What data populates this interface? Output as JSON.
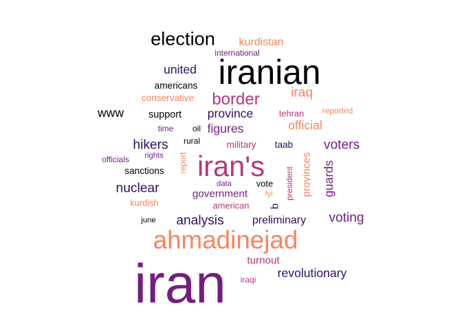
{
  "palette": {
    "black": "#000004",
    "dark_purple": "#2c0f5e",
    "purple": "#721f81",
    "magenta": "#b73779",
    "coral": "#f1605d",
    "orange": "#f8845e"
  },
  "words": [
    {
      "text": "iran",
      "weight": 100,
      "color": "#721f81",
      "rotated": false
    },
    {
      "text": "iranian",
      "weight": 62,
      "color": "#000004",
      "rotated": false
    },
    {
      "text": "ahmadinejad",
      "weight": 46,
      "color": "#f8845e",
      "rotated": false
    },
    {
      "text": "iran's",
      "weight": 52,
      "color": "#b73779",
      "rotated": false
    },
    {
      "text": "election",
      "weight": 34,
      "color": "#000004",
      "rotated": false
    },
    {
      "text": "border",
      "weight": 30,
      "color": "#b73779",
      "rotated": false
    },
    {
      "text": "iraq",
      "weight": 24,
      "color": "#f8845e",
      "rotated": false
    },
    {
      "text": "voters",
      "weight": 24,
      "color": "#721f81",
      "rotated": false
    },
    {
      "text": "voting",
      "weight": 24,
      "color": "#721f81",
      "rotated": false
    },
    {
      "text": "hikers",
      "weight": 24,
      "color": "#2c0f5e",
      "rotated": false
    },
    {
      "text": "nuclear",
      "weight": 24,
      "color": "#2c0f5e",
      "rotated": false
    },
    {
      "text": "analysis",
      "weight": 24,
      "color": "#2c0f5e",
      "rotated": false
    },
    {
      "text": "official",
      "weight": 22,
      "color": "#f8845e",
      "rotated": false
    },
    {
      "text": "united",
      "weight": 22,
      "color": "#2c0f5e",
      "rotated": false
    },
    {
      "text": "province",
      "weight": 22,
      "color": "#2c0f5e",
      "rotated": false
    },
    {
      "text": "www",
      "weight": 22,
      "color": "#000004",
      "rotated": false
    },
    {
      "text": "figures",
      "weight": 22,
      "color": "#721f81",
      "rotated": false
    },
    {
      "text": "revolutionary",
      "weight": 22,
      "color": "#2c0f5e",
      "rotated": false
    },
    {
      "text": "guards",
      "weight": 22,
      "color": "#721f81",
      "rotated": true
    },
    {
      "text": "preliminary",
      "weight": 20,
      "color": "#2c0f5e",
      "rotated": false
    },
    {
      "text": "kurdistan",
      "weight": 20,
      "color": "#f8845e",
      "rotated": false
    },
    {
      "text": "turnout",
      "weight": 19,
      "color": "#b73779",
      "rotated": false
    },
    {
      "text": "government",
      "weight": 19,
      "color": "#721f81",
      "rotated": false
    },
    {
      "text": "b",
      "weight": 19,
      "color": "#2c0f5e",
      "rotated": true
    },
    {
      "text": "provinces",
      "weight": 19,
      "color": "#f8845e",
      "rotated": true
    },
    {
      "text": "support",
      "weight": 18,
      "color": "#000004",
      "rotated": false
    },
    {
      "text": "americans",
      "weight": 17,
      "color": "#000004",
      "rotated": false
    },
    {
      "text": "conservative",
      "weight": 17,
      "color": "#f8845e",
      "rotated": false
    },
    {
      "text": "military",
      "weight": 17,
      "color": "#b73779",
      "rotated": false
    },
    {
      "text": "taab",
      "weight": 17,
      "color": "#2c0f5e",
      "rotated": false
    },
    {
      "text": "tehran",
      "weight": 16,
      "color": "#b73779",
      "rotated": false
    },
    {
      "text": "sanctions",
      "weight": 17,
      "color": "#000004",
      "rotated": false
    },
    {
      "text": "american",
      "weight": 16,
      "color": "#b73779",
      "rotated": false
    },
    {
      "text": "kurdish",
      "weight": 16,
      "color": "#f8845e",
      "rotated": false
    },
    {
      "text": "vote",
      "weight": 16,
      "color": "#000004",
      "rotated": false
    },
    {
      "text": "international",
      "weight": 15,
      "color": "#721f81",
      "rotated": false
    },
    {
      "text": "reported",
      "weight": 15,
      "color": "#f8845e",
      "rotated": false
    },
    {
      "text": "iraqi",
      "weight": 15,
      "color": "#b73779",
      "rotated": false
    },
    {
      "text": "time",
      "weight": 15,
      "color": "#721f81",
      "rotated": false
    },
    {
      "text": "oil",
      "weight": 15,
      "color": "#000004",
      "rotated": false
    },
    {
      "text": "rural",
      "weight": 15,
      "color": "#000004",
      "rotated": false
    },
    {
      "text": "officials",
      "weight": 15,
      "color": "#721f81",
      "rotated": false
    },
    {
      "text": "rights",
      "weight": 14,
      "color": "#721f81",
      "rotated": false
    },
    {
      "text": "report",
      "weight": 15,
      "color": "#f8845e",
      "rotated": true
    },
    {
      "text": "president",
      "weight": 15,
      "color": "#b73779",
      "rotated": true
    },
    {
      "text": "data",
      "weight": 14,
      "color": "#721f81",
      "rotated": false
    },
    {
      "text": "fyi",
      "weight": 14,
      "color": "#f8845e",
      "rotated": false
    },
    {
      "text": "june",
      "weight": 14,
      "color": "#000004",
      "rotated": false
    }
  ]
}
